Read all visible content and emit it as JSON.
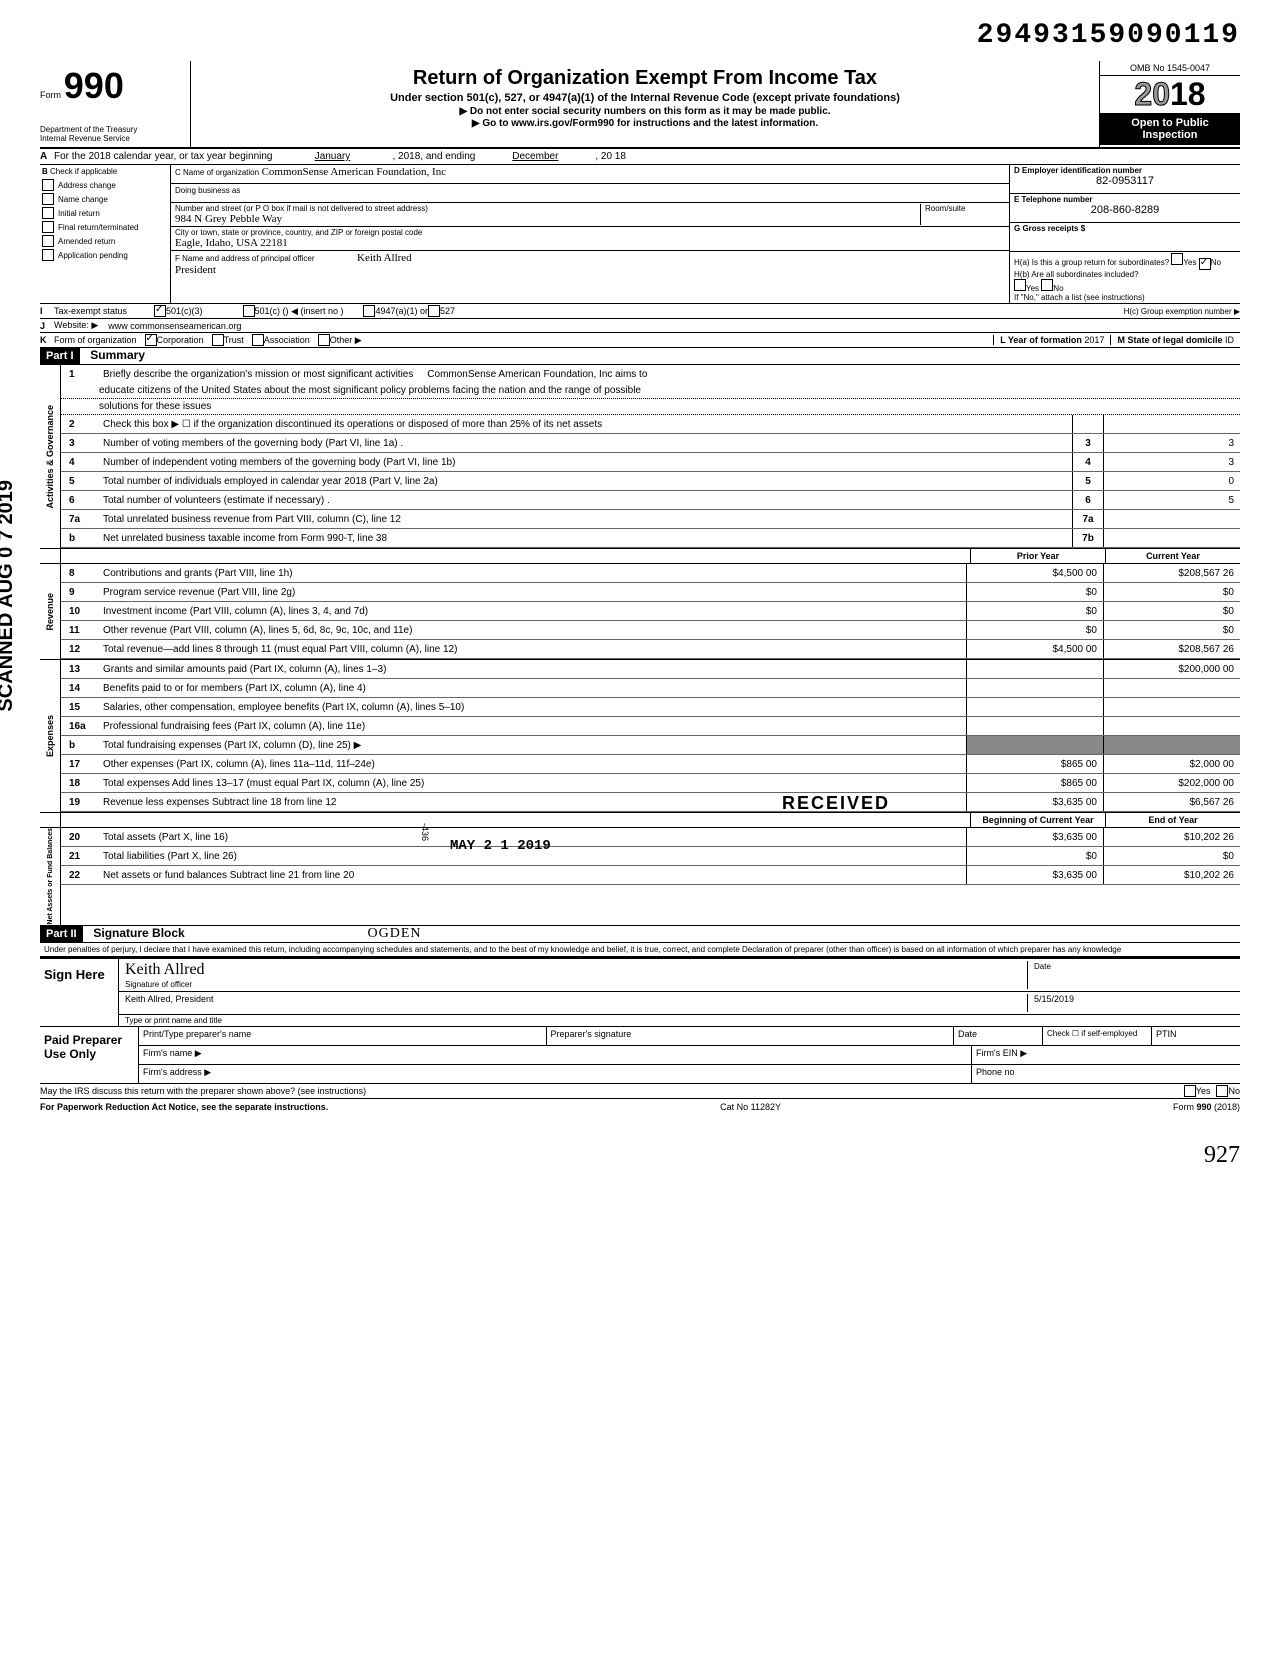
{
  "tracking_number": "29493159090119",
  "header": {
    "form_label": "Form",
    "form_number": "990",
    "title": "Return of Organization Exempt From Income Tax",
    "subtitle": "Under section 501(c), 527, or 4947(a)(1) of the Internal Revenue Code (except private foundations)",
    "note1": "▶ Do not enter social security numbers on this form as it may be made public.",
    "note2": "▶ Go to www.irs.gov/Form990 for instructions and the latest information.",
    "dept1": "Department of the Treasury",
    "dept2": "Internal Revenue Service",
    "omb": "OMB No 1545-0047",
    "year": "2018",
    "open_public": "Open to Public Inspection"
  },
  "row_a": {
    "label": "A",
    "text": "For the 2018 calendar year, or tax year beginning",
    "begin_month": "January",
    "mid": ", 2018, and ending",
    "end_month": "December",
    "end": ", 20  18"
  },
  "col_b": {
    "label": "B",
    "intro": "Check if applicable",
    "items": [
      "Address change",
      "Name change",
      "Initial return",
      "Final return/terminated",
      "Amended return",
      "Application pending"
    ]
  },
  "col_c": {
    "name_label": "C Name of organization",
    "name": "CommonSense American Foundation, Inc",
    "dba_label": "Doing business as",
    "dba": "",
    "addr_label": "Number and street (or P O  box if mail is not delivered to street address)",
    "addr": "984 N Grey Pebble Way",
    "room_label": "Room/suite",
    "city_label": "City or town, state or province, country, and ZIP or foreign postal code",
    "city": "Eagle, Idaho, USA 22181",
    "officer_label": "F Name and address of principal officer",
    "officer_name": "Keith Allred",
    "officer_title": "President"
  },
  "col_de": {
    "d_label": "D Employer identification number",
    "d_val": "82-0953117",
    "e_label": "E Telephone number",
    "e_val": "208-860-8289",
    "g_label": "G Gross receipts $",
    "ha": "H(a) Is this a group return for subordinates?",
    "hb": "H(b) Are all subordinates included?",
    "h_note": "If \"No,\" attach a list (see instructions)",
    "hc": "H(c) Group exemption number ▶",
    "yes": "Yes",
    "no": "No"
  },
  "row_i": {
    "label": "I",
    "text": "Tax-exempt status",
    "opt1": "501(c)(3)",
    "opt2": "501(c) (",
    "opt2b": ") ◀ (insert no )",
    "opt3": "4947(a)(1) or",
    "opt4": "527"
  },
  "row_j": {
    "label": "J",
    "text": "Website: ▶",
    "val": "www commonsenseamerican.org"
  },
  "row_k": {
    "label": "K",
    "text": "Form of organization",
    "opts": [
      "Corporation",
      "Trust",
      "Association",
      "Other ▶"
    ],
    "l_label": "L Year of formation",
    "l_val": "2017",
    "m_label": "M State of legal domicile",
    "m_val": "ID"
  },
  "part1": {
    "header": "Part I",
    "title": "Summary"
  },
  "mission": {
    "num": "1",
    "label": "Briefly describe the organization's mission or most significant activities",
    "text1": "CommonSense American Foundation, Inc aims to",
    "text2": "educate citizens of the United States about the most significant policy problems facing the nation and the range of possible",
    "text3": "solutions for these issues"
  },
  "governance": {
    "side": "Activities & Governance",
    "rows": [
      {
        "n": "2",
        "d": "Check this box ▶ ☐ if the organization discontinued its operations or disposed of more than 25% of its net assets",
        "box": "",
        "v": ""
      },
      {
        "n": "3",
        "d": "Number of voting members of the governing body (Part VI, line 1a) .",
        "box": "3",
        "v": "3"
      },
      {
        "n": "4",
        "d": "Number of independent voting members of the governing body (Part VI, line 1b)",
        "box": "4",
        "v": "3"
      },
      {
        "n": "5",
        "d": "Total number of individuals employed in calendar year 2018 (Part V, line 2a)",
        "box": "5",
        "v": "0"
      },
      {
        "n": "6",
        "d": "Total number of volunteers (estimate if necessary)   .",
        "box": "6",
        "v": "5"
      },
      {
        "n": "7a",
        "d": "Total unrelated business revenue from Part VIII, column (C), line 12",
        "box": "7a",
        "v": ""
      },
      {
        "n": "b",
        "d": "Net unrelated business taxable income from Form 990-T, line 38",
        "box": "7b",
        "v": ""
      }
    ]
  },
  "col_headers": {
    "prior": "Prior Year",
    "current": "Current Year"
  },
  "revenue": {
    "side": "Revenue",
    "rows": [
      {
        "n": "8",
        "d": "Contributions and grants (Part VIII, line 1h)",
        "p": "$4,500 00",
        "c": "$208,567 26"
      },
      {
        "n": "9",
        "d": "Program service revenue (Part VIII, line 2g)",
        "p": "$0",
        "c": "$0"
      },
      {
        "n": "10",
        "d": "Investment income (Part VIII, column (A), lines 3, 4, and 7d)",
        "p": "$0",
        "c": "$0"
      },
      {
        "n": "11",
        "d": "Other revenue (Part VIII, column (A), lines 5, 6d, 8c, 9c, 10c, and 11e)",
        "p": "$0",
        "c": "$0"
      },
      {
        "n": "12",
        "d": "Total revenue—add lines 8 through 11 (must equal Part VIII, column (A), line 12)",
        "p": "$4,500 00",
        "c": "$208,567 26"
      }
    ]
  },
  "expenses": {
    "side": "Expenses",
    "rows": [
      {
        "n": "13",
        "d": "Grants and similar amounts paid (Part IX, column (A), lines 1–3)",
        "p": "",
        "c": "$200,000 00"
      },
      {
        "n": "14",
        "d": "Benefits paid to or for members (Part IX, column (A), line 4)",
        "p": "",
        "c": ""
      },
      {
        "n": "15",
        "d": "Salaries, other compensation, employee benefits (Part IX, column (A), lines 5–10)",
        "p": "",
        "c": ""
      },
      {
        "n": "16a",
        "d": "Professional fundraising fees (Part IX, column (A),  line 11e)",
        "p": "",
        "c": ""
      },
      {
        "n": "b",
        "d": "Total fundraising expenses (Part IX, column (D), line 25) ▶",
        "p": "shade",
        "c": "shade"
      },
      {
        "n": "17",
        "d": "Other expenses (Part IX, column (A), lines 11a–11d, 11f–24e)",
        "p": "$865 00",
        "c": "$2,000 00"
      },
      {
        "n": "18",
        "d": "Total expenses Add lines 13–17 (must equal Part IX, column (A), line 25)",
        "p": "$865 00",
        "c": "$202,000 00"
      },
      {
        "n": "19",
        "d": "Revenue less expenses Subtract line 18 from line 12",
        "p": "$3,635 00",
        "c": "$6,567 26"
      }
    ]
  },
  "col_headers2": {
    "prior": "Beginning of Current Year",
    "current": "End of Year"
  },
  "netassets": {
    "side": "Net Assets or Fund Balances",
    "rows": [
      {
        "n": "20",
        "d": "Total assets (Part X, line 16)",
        "p": "$3,635 00",
        "c": "$10,202 26"
      },
      {
        "n": "21",
        "d": "Total liabilities (Part X, line 26)",
        "p": "$0",
        "c": "$0"
      },
      {
        "n": "22",
        "d": "Net assets or fund balances Subtract line 21 from line 20",
        "p": "$3,635 00",
        "c": "$10,202 26"
      }
    ]
  },
  "part2": {
    "header": "Part II",
    "title": "Signature Block",
    "perjury": "Under penalties of perjury, I declare that I have examined this return, including accompanying schedules and statements, and to the best of my knowledge  and belief, it is true, correct, and complete Declaration of preparer (other than officer) is based on all information of which preparer has any knowledge"
  },
  "sign": {
    "label": "Sign Here",
    "sig_label": "Signature of officer",
    "date_label": "Date",
    "name": "Keith Allred, President",
    "date": "5/15/2019",
    "type_label": "Type or print name and title"
  },
  "preparer": {
    "label": "Paid Preparer Use Only",
    "c1": "Print/Type preparer's name",
    "c2": "Preparer's signature",
    "c3": "Date",
    "c4": "Check ☐ if self-employed",
    "c5": "PTIN",
    "firm_name": "Firm's name    ▶",
    "firm_ein": "Firm's EIN ▶",
    "firm_addr": "Firm's address ▶",
    "phone": "Phone no"
  },
  "discuss": {
    "text": "May the IRS discuss this return with the preparer shown above? (see instructions)",
    "yes": "Yes",
    "no": "No"
  },
  "footer": {
    "left": "For Paperwork Reduction Act Notice, see the separate instructions.",
    "mid": "Cat No 11282Y",
    "right": "Form 990 (2018)"
  },
  "stamps": {
    "scanned": "SCANNED AUG 0 7 2019",
    "received": "RECEIVED",
    "received_date": "MAY 2 1 2019",
    "ogden": "OGDEN",
    "hand": "927",
    "batch": "-436"
  }
}
